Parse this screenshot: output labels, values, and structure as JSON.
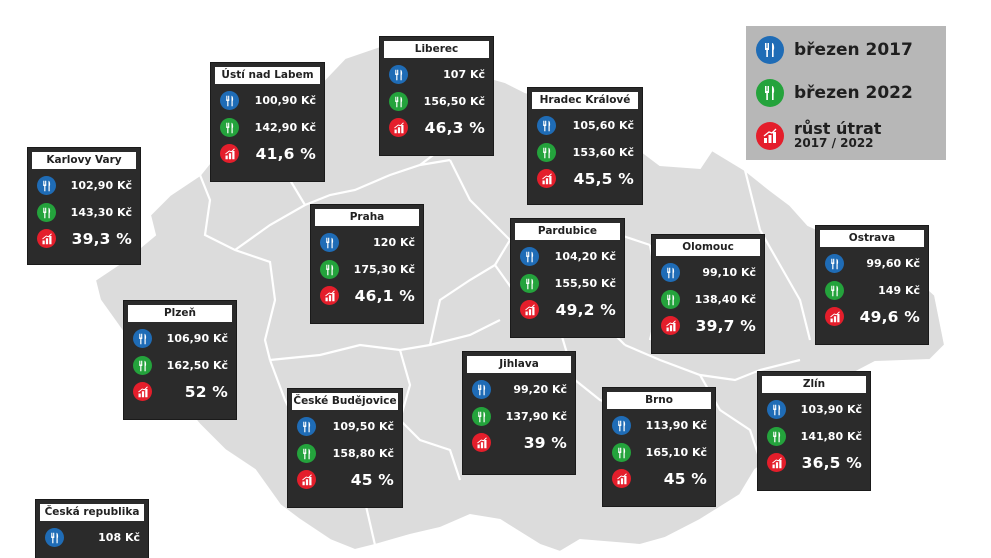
{
  "colors": {
    "blue": "#1f6cb6",
    "green": "#24a33c",
    "red": "#e41e2b",
    "map_fill": "#dcdcdc",
    "card_bg": "#2b2b2b"
  },
  "icons": {
    "march_2017": "cutlery-icon",
    "march_2022": "cutlery-icon",
    "growth": "bar-chart-icon"
  },
  "legend": {
    "item1": "březen 2017",
    "item2": "březen 2022",
    "item3_line1": "růst útrat",
    "item3_line2": "2017 / 2022"
  },
  "regions": [
    {
      "name": "Karlovy Vary",
      "v2017": "102,90 Kč",
      "v2022": "143,30 Kč",
      "growth": "39,3 %"
    },
    {
      "name": "Ústí nad Labem",
      "v2017": "100,90 Kč",
      "v2022": "142,90 Kč",
      "growth": "41,6 %"
    },
    {
      "name": "Liberec",
      "v2017": "107 Kč",
      "v2022": "156,50 Kč",
      "growth": "46,3 %"
    },
    {
      "name": "Hradec Králové",
      "v2017": "105,60 Kč",
      "v2022": "153,60 Kč",
      "growth": "45,5 %"
    },
    {
      "name": "Praha",
      "v2017": "120 Kč",
      "v2022": "175,30 Kč",
      "growth": "46,1 %"
    },
    {
      "name": "Pardubice",
      "v2017": "104,20 Kč",
      "v2022": "155,50 Kč",
      "growth": "49,2 %"
    },
    {
      "name": "Olomouc",
      "v2017": "99,10 Kč",
      "v2022": "138,40 Kč",
      "growth": "39,7 %"
    },
    {
      "name": "Ostrava",
      "v2017": "99,60 Kč",
      "v2022": "149 Kč",
      "growth": "49,6 %"
    },
    {
      "name": "Plzeň",
      "v2017": "106,90 Kč",
      "v2022": "162,50 Kč",
      "growth": "52 %"
    },
    {
      "name": "České Budějovice",
      "v2017": "109,50 Kč",
      "v2022": "158,80 Kč",
      "growth": "45 %"
    },
    {
      "name": "Jihlava",
      "v2017": "99,20 Kč",
      "v2022": "137,90 Kč",
      "growth": "39 %"
    },
    {
      "name": "Brno",
      "v2017": "113,90 Kč",
      "v2022": "165,10 Kč",
      "growth": "45 %"
    },
    {
      "name": "Zlín",
      "v2017": "103,90 Kč",
      "v2022": "141,80 Kč",
      "growth": "36,5 %"
    },
    {
      "name": "Česká republika",
      "v2017": "108 Kč"
    }
  ]
}
